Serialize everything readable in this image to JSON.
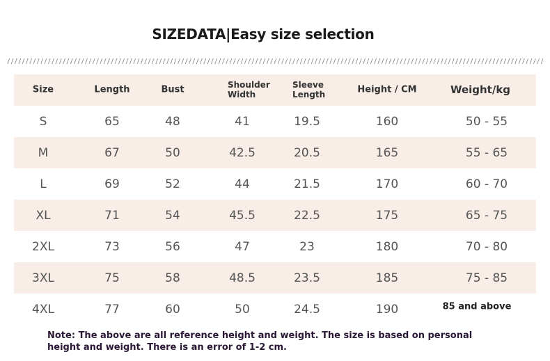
{
  "header": {
    "title": "SIZEDATA|Easy size selection"
  },
  "table": {
    "columns": [
      "Size",
      "Length",
      "Bust",
      "Shoulder Width",
      "Sleeve Length",
      "Height / CM",
      "Weight/kg"
    ],
    "rows": [
      [
        "S",
        65,
        48,
        41,
        19.5,
        160,
        "50 - 55"
      ],
      [
        "M",
        67,
        50,
        42.5,
        20.5,
        165,
        "55 - 65"
      ],
      [
        "L",
        69,
        52,
        44,
        21.5,
        170,
        "60 - 70"
      ],
      [
        "XL",
        71,
        54,
        45.5,
        22.5,
        175,
        "65 - 75"
      ],
      [
        "2XL",
        73,
        56,
        47,
        23,
        180,
        "70 - 80"
      ],
      [
        "3XL",
        75,
        58,
        48.5,
        23.5,
        185,
        "75 - 85"
      ],
      [
        "4XL",
        77,
        60,
        50,
        24.5,
        190,
        "85 and above"
      ]
    ]
  },
  "note": "Note: The above are all reference height and weight. The size is based on personal height and weight. There is an error of 1-2 cm."
}
